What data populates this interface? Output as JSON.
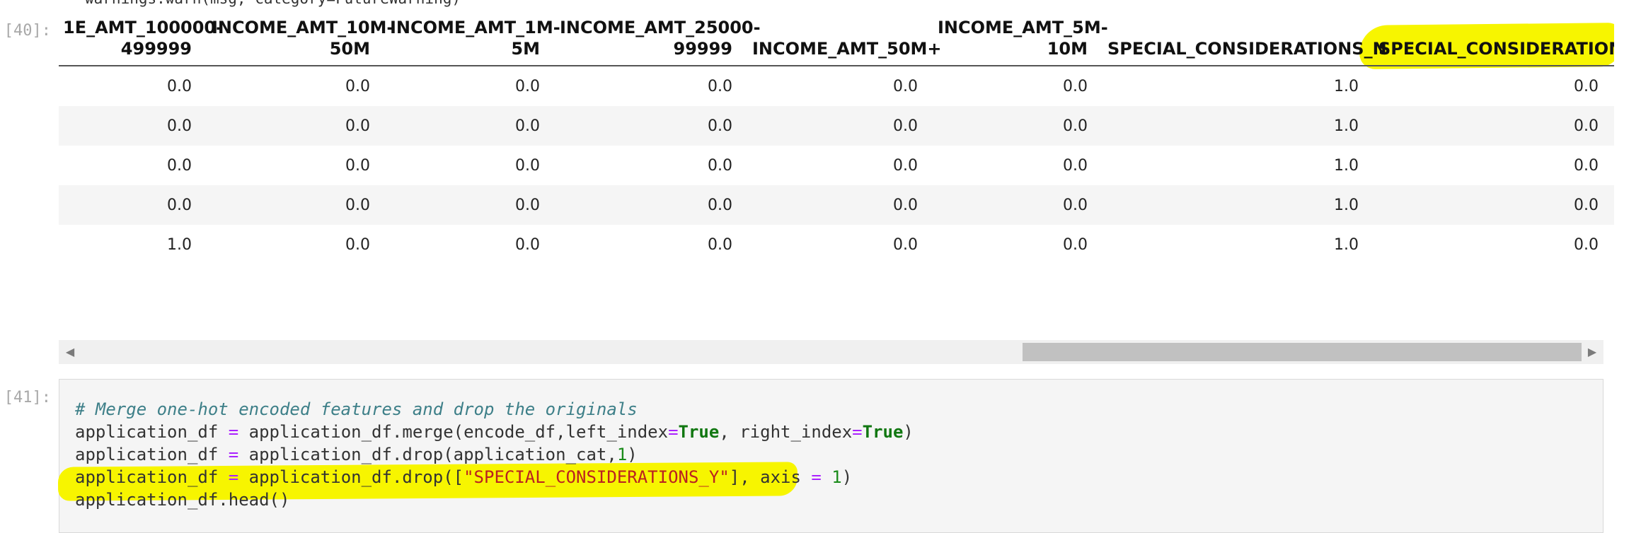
{
  "cell40": {
    "prompt": "[40]:",
    "clipped_line": "warnings.warn(msg, category=FutureWarning)",
    "columns": [
      "1E_AMT_100000-\n499999",
      "INCOME_AMT_10M-\n50M",
      "INCOME_AMT_1M-\n5M",
      "INCOME_AMT_25000-\n99999",
      "INCOME_AMT_50M+",
      "INCOME_AMT_5M-\n10M",
      "SPECIAL_CONSIDERATIONS_N",
      "SPECIAL_CONSIDERATIONS_Y"
    ],
    "rows": [
      [
        "0.0",
        "0.0",
        "0.0",
        "0.0",
        "0.0",
        "0.0",
        "1.0",
        "0.0"
      ],
      [
        "0.0",
        "0.0",
        "0.0",
        "0.0",
        "0.0",
        "0.0",
        "1.0",
        "0.0"
      ],
      [
        "0.0",
        "0.0",
        "0.0",
        "0.0",
        "0.0",
        "0.0",
        "1.0",
        "0.0"
      ],
      [
        "0.0",
        "0.0",
        "0.0",
        "0.0",
        "0.0",
        "0.0",
        "1.0",
        "0.0"
      ],
      [
        "1.0",
        "0.0",
        "0.0",
        "0.0",
        "0.0",
        "0.0",
        "1.0",
        "0.0"
      ]
    ],
    "highlight_color": "#f7f500"
  },
  "scrollbar": {
    "left_arrow": "◀",
    "right_arrow": "▶"
  },
  "cell41": {
    "prompt": "[41]:",
    "comment": "# Merge one-hot encoded features and drop the originals",
    "line2": {
      "a": "application_df",
      "eq": "=",
      "b": "application_df.merge(encode_df,left_index",
      "eq2": "=",
      "kw1": "True",
      "c": ", right_index",
      "eq3": "=",
      "kw2": "True",
      "d": ")"
    },
    "line3": {
      "a": "application_df",
      "eq": "=",
      "b": "application_df.drop(application_cat,",
      "num": "1",
      "c": ")"
    },
    "line4": {
      "a": "application_df",
      "eq": "=",
      "b": "application_df.drop([",
      "str": "\"SPECIAL_CONSIDERATIONS_Y\"",
      "c": "], axis",
      "eq2": "=",
      "num": "1",
      "d": ")"
    },
    "line5": "application_df.head()"
  }
}
